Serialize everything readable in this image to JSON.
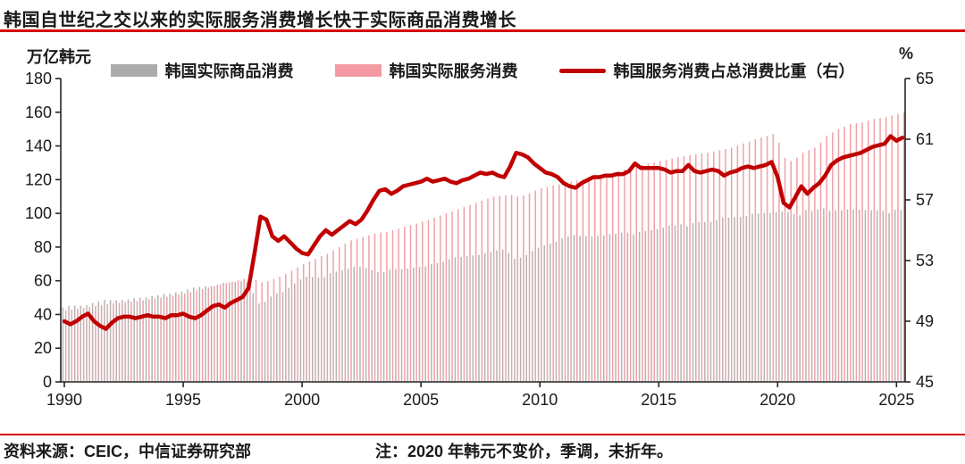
{
  "page": {
    "title": "韩国自世纪之交以来的实际服务消费增长快于实际商品消费增长",
    "unit_left": "万亿韩元",
    "unit_right": "%",
    "footer_source": "资料来源：CEIC，中信证券研究部",
    "footer_note": "注：2020 年韩元不变价，季调，未折年。"
  },
  "colors": {
    "accent_red": "#c00000",
    "rule_red": "#d40000",
    "goods_gray": "#b4b4b4",
    "legend_gray": "#ababab",
    "services_pink": "#f2a0a6",
    "legend_pink": "#f49aa2",
    "text_dark": "#1a1a1a",
    "axis_black": "#262626"
  },
  "chart_data": {
    "type": "bar+line combo, quarterly",
    "title": "韩国自世纪之交以来的实际服务消费增长快于实际商品消费增长",
    "x_axis": {
      "start_year": 1990.0,
      "step_years": 0.25,
      "tick_years": [
        1990,
        1995,
        2000,
        2005,
        2010,
        2015,
        2020,
        2025
      ],
      "frequency": "quarterly"
    },
    "left_axis": {
      "label": "万亿韩元",
      "min": 0,
      "max": 180,
      "step": 20
    },
    "right_axis": {
      "label": "%",
      "min": 45,
      "max": 65,
      "step": 4
    },
    "grid": false,
    "legend_position": "top-center",
    "legend": [
      {
        "label": "韩国实际商品消费",
        "type": "bar",
        "color": "#ababab"
      },
      {
        "label": "韩国实际服务消费",
        "type": "bar",
        "color": "#f49aa2"
      },
      {
        "label": "韩国服务消费占总消费比重（右）",
        "type": "line",
        "color": "#c00000"
      }
    ],
    "series": [
      {
        "name": "韩国实际商品消费",
        "axis": "left",
        "kind": "bar",
        "values": [
          44.2,
          45.1,
          45.3,
          45.2,
          45.4,
          46.8,
          47.9,
          48.8,
          48.6,
          48.4,
          48.6,
          49.0,
          49.6,
          49.9,
          50.2,
          50.9,
          51.4,
          52.2,
          52.4,
          53.1,
          53.6,
          54.9,
          56.0,
          56.4,
          56.7,
          56.9,
          57.6,
          58.8,
          59.0,
          59.3,
          59.7,
          59.1,
          52.6,
          46.5,
          47.5,
          50.7,
          52.6,
          53.2,
          55.8,
          58.4,
          60.8,
          62.4,
          62.2,
          61.9,
          62.2,
          64.6,
          65.5,
          66.3,
          67.1,
          68.4,
          68.4,
          67.5,
          66.4,
          65.2,
          65.2,
          66.8,
          67.0,
          66.9,
          67.3,
          67.8,
          68.2,
          68.5,
          70.0,
          70.6,
          71.2,
          72.7,
          73.9,
          74.2,
          74.8,
          75.0,
          75.3,
          76.5,
          77.1,
          78.0,
          78.5,
          76.5,
          73.0,
          73.7,
          75.3,
          77.6,
          79.6,
          81.1,
          82.0,
          83.1,
          85.1,
          86.3,
          87.2,
          86.7,
          86.5,
          86.3,
          86.9,
          87.0,
          87.6,
          87.9,
          88.6,
          88.6,
          87.5,
          89.1,
          89.6,
          90.1,
          90.7,
          91.5,
          92.8,
          92.9,
          93.5,
          92.3,
          94.2,
          94.9,
          94.9,
          95.0,
          95.9,
          97.6,
          97.4,
          97.8,
          97.9,
          98.4,
          99.7,
          99.9,
          100.2,
          100.1,
          100.7,
          101.2,
          100.8,
          99.5,
          98.9,
          102.0,
          101.5,
          102.4,
          103.1,
          101.6,
          101.7,
          101.9,
          102.4,
          102.3,
          102.2,
          102.0,
          101.8,
          101.7,
          101.6,
          100.2,
          102.1,
          101.9
        ]
      },
      {
        "name": "韩国实际服务消费",
        "axis": "left",
        "kind": "bar",
        "values": [
          42.5,
          43.0,
          43.5,
          44.0,
          44.5,
          45.0,
          45.5,
          46.0,
          46.5,
          46.9,
          47.3,
          47.6,
          48.0,
          48.5,
          49.0,
          49.5,
          50.0,
          50.6,
          51.2,
          51.8,
          52.5,
          53.4,
          54.2,
          55.1,
          56.0,
          56.9,
          57.8,
          58.6,
          59.5,
          60.3,
          61.1,
          62.0,
          60.5,
          59.0,
          59.7,
          61.0,
          62.5,
          64.0,
          66.0,
          68.0,
          70.0,
          71.5,
          73.0,
          74.5,
          76.0,
          78.0,
          80.0,
          82.0,
          84.0,
          85.0,
          86.0,
          87.0,
          88.0,
          88.6,
          89.0,
          90.0,
          91.0,
          92.0,
          93.0,
          94.0,
          95.0,
          96.2,
          97.5,
          98.7,
          100.0,
          101.2,
          102.5,
          103.7,
          105.0,
          106.2,
          107.5,
          108.7,
          110.0,
          110.4,
          110.7,
          111.0,
          110.0,
          110.5,
          112.0,
          113.5,
          115.0,
          115.7,
          116.5,
          117.2,
          118.0,
          118.7,
          119.5,
          120.2,
          121.0,
          121.7,
          122.5,
          123.2,
          124.0,
          125.0,
          126.0,
          127.0,
          128.0,
          128.7,
          129.5,
          130.2,
          131.0,
          131.7,
          132.5,
          133.2,
          134.0,
          134.5,
          135.0,
          135.5,
          136.0,
          136.7,
          137.5,
          138.2,
          139.0,
          140.2,
          141.5,
          142.7,
          144.0,
          145.0,
          146.0,
          147.0,
          142.0,
          133.0,
          131.0,
          133.0,
          136.0,
          137.5,
          139.0,
          142.0,
          146.0,
          148.0,
          150.0,
          151.5,
          153.0,
          153.5,
          154.0,
          155.0,
          156.0,
          156.5,
          157.0,
          158.0,
          159.0,
          160.0
        ]
      },
      {
        "name": "韩国服务消费占总消费比重（右）",
        "axis": "right",
        "kind": "line",
        "values": [
          49.0,
          48.8,
          49.0,
          49.3,
          49.5,
          49.0,
          48.7,
          48.5,
          48.9,
          49.2,
          49.3,
          49.3,
          49.2,
          49.3,
          49.4,
          49.3,
          49.3,
          49.2,
          49.4,
          49.4,
          49.5,
          49.3,
          49.2,
          49.4,
          49.7,
          50.0,
          50.1,
          49.9,
          50.2,
          50.4,
          50.6,
          51.2,
          53.5,
          55.9,
          55.7,
          54.6,
          54.3,
          54.6,
          54.2,
          53.8,
          53.5,
          53.4,
          54.0,
          54.6,
          55.0,
          54.7,
          55.0,
          55.3,
          55.6,
          55.4,
          55.7,
          56.3,
          57.0,
          57.6,
          57.7,
          57.4,
          57.6,
          57.9,
          58.0,
          58.1,
          58.2,
          58.4,
          58.2,
          58.3,
          58.4,
          58.2,
          58.1,
          58.3,
          58.4,
          58.6,
          58.8,
          58.7,
          58.8,
          58.6,
          58.5,
          59.2,
          60.1,
          60.0,
          59.8,
          59.4,
          59.1,
          58.8,
          58.7,
          58.5,
          58.1,
          57.9,
          57.8,
          58.1,
          58.3,
          58.5,
          58.5,
          58.6,
          58.6,
          58.7,
          58.7,
          58.9,
          59.4,
          59.1,
          59.1,
          59.1,
          59.1,
          59.0,
          58.8,
          58.9,
          58.9,
          59.3,
          58.9,
          58.8,
          58.9,
          59.0,
          58.9,
          58.6,
          58.8,
          58.9,
          59.1,
          59.2,
          59.1,
          59.2,
          59.3,
          59.5,
          58.5,
          56.8,
          56.5,
          57.2,
          57.9,
          57.4,
          57.8,
          58.1,
          58.6,
          59.3,
          59.6,
          59.8,
          59.9,
          60.0,
          60.1,
          60.3,
          60.5,
          60.6,
          60.7,
          61.2,
          60.9,
          61.1
        ]
      }
    ]
  }
}
